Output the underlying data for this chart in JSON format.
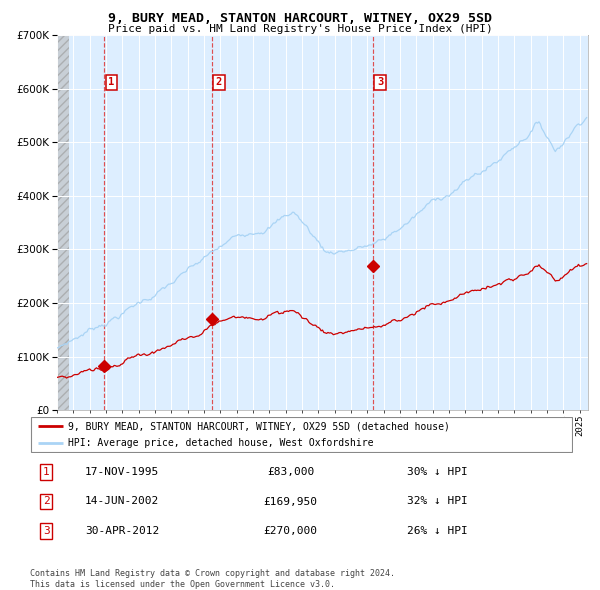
{
  "title": "9, BURY MEAD, STANTON HARCOURT, WITNEY, OX29 5SD",
  "subtitle": "Price paid vs. HM Land Registry's House Price Index (HPI)",
  "hpi_color": "#aad4f5",
  "price_color": "#cc0000",
  "plot_bg": "#ddeeff",
  "sale_prices": [
    83000,
    169950,
    270000
  ],
  "sale_labels": [
    "1",
    "2",
    "3"
  ],
  "vline_years": [
    1995.88,
    2002.46,
    2012.33
  ],
  "legend_items": [
    "9, BURY MEAD, STANTON HARCOURT, WITNEY, OX29 5SD (detached house)",
    "HPI: Average price, detached house, West Oxfordshire"
  ],
  "table_rows": [
    [
      "1",
      "17-NOV-1995",
      "£83,000",
      "30% ↓ HPI"
    ],
    [
      "2",
      "14-JUN-2002",
      "£169,950",
      "32% ↓ HPI"
    ],
    [
      "3",
      "30-APR-2012",
      "£270,000",
      "26% ↓ HPI"
    ]
  ],
  "footer": "Contains HM Land Registry data © Crown copyright and database right 2024.\nThis data is licensed under the Open Government Licence v3.0.",
  "ylim": [
    0,
    700000
  ],
  "yticks": [
    0,
    100000,
    200000,
    300000,
    400000,
    500000,
    600000,
    700000
  ],
  "xlim_start": 1993.0,
  "xlim_end": 2025.5,
  "hatch_end": 1993.75
}
